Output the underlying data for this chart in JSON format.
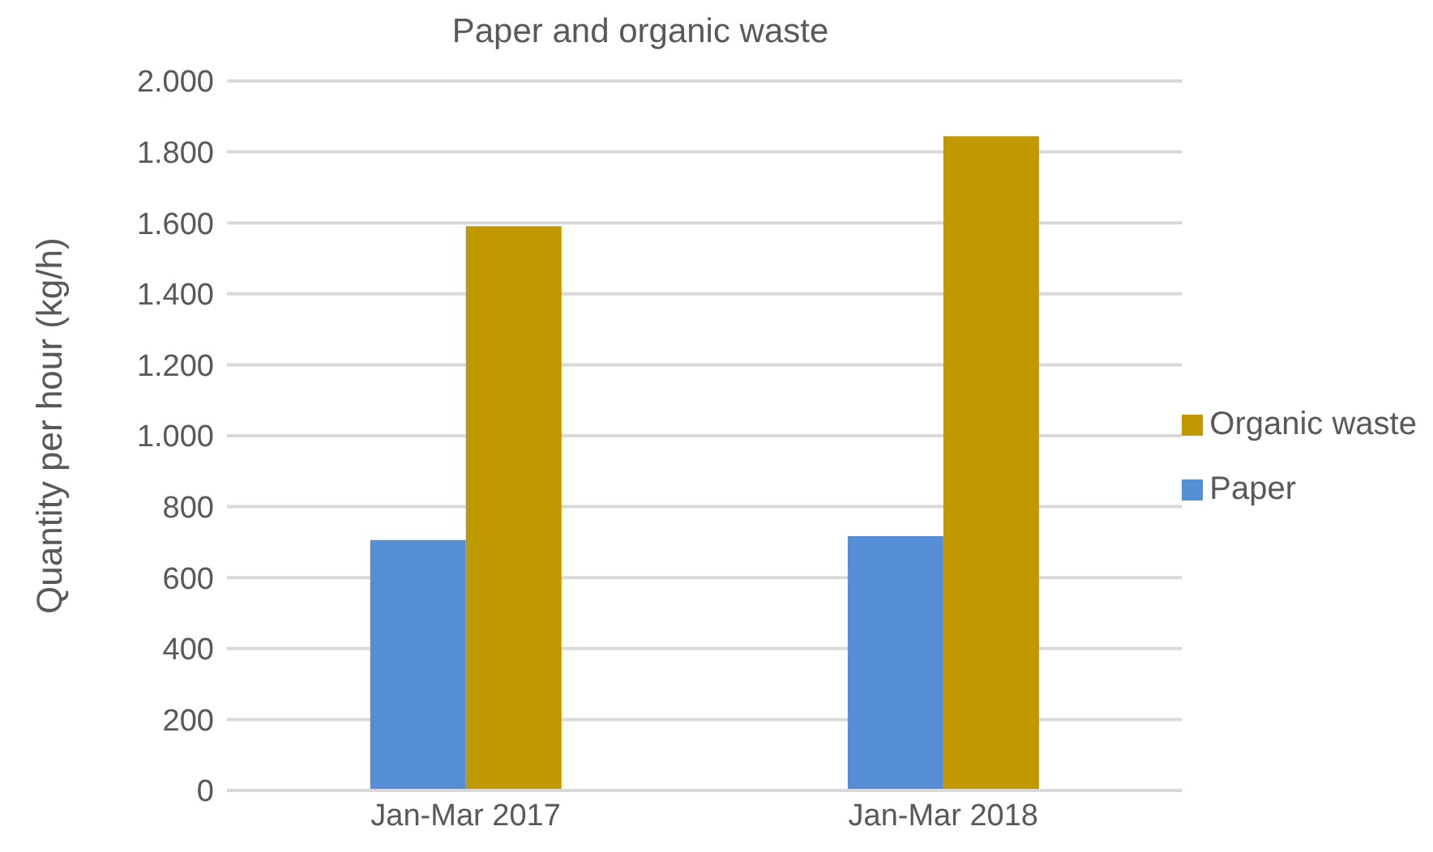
{
  "chart_data": {
    "type": "bar",
    "title": "Paper and organic waste",
    "ylabel": "Quantity per hour (kg/h)",
    "categories": [
      "Jan-Mar 2017",
      "Jan-Mar 2018"
    ],
    "series": [
      {
        "name": "Paper",
        "color": "#558ed5",
        "values": [
          706,
          717
        ]
      },
      {
        "name": "Organic waste",
        "color": "#c09900",
        "values": [
          1591,
          1844
        ]
      }
    ],
    "ylim": [
      0,
      2000
    ],
    "yticks": [
      0,
      200,
      400,
      600,
      800,
      {
        "value": 1000,
        "label": "1.000"
      },
      {
        "value": 1200,
        "label": "1.200"
      },
      {
        "value": 1400,
        "label": "1.400"
      },
      {
        "value": 1600,
        "label": "1.600"
      },
      {
        "value": 1800,
        "label": "1.800"
      },
      {
        "value": 2000,
        "label": "2.000"
      }
    ],
    "grid": "y",
    "legend": "right"
  }
}
